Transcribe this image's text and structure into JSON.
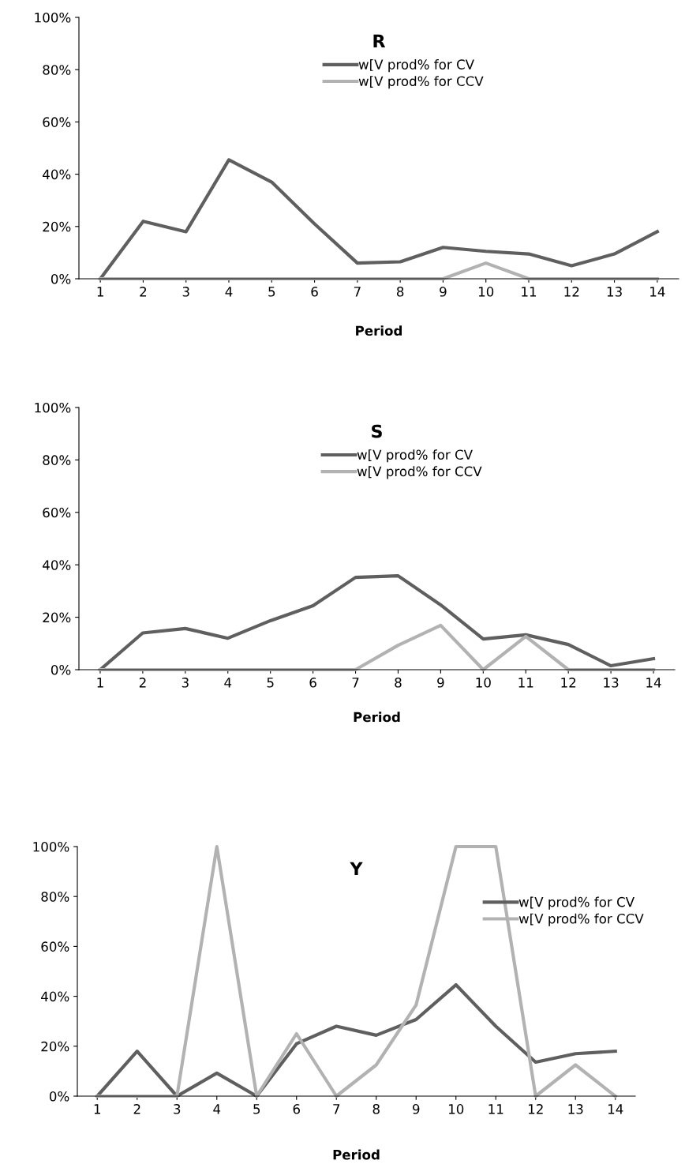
{
  "chart_data": [
    {
      "type": "line",
      "title": "R",
      "xlabel": "Period",
      "categories": [
        "1",
        "2",
        "3",
        "4",
        "5",
        "6",
        "7",
        "8",
        "9",
        "10",
        "11",
        "12",
        "13",
        "14"
      ],
      "ylim": [
        0,
        100
      ],
      "yticks": [
        {
          "value": 0,
          "label": "0%"
        },
        {
          "value": 20,
          "label": "20%"
        },
        {
          "value": 40,
          "label": "40%"
        },
        {
          "value": 60,
          "label": "60%"
        },
        {
          "value": 80,
          "label": "80%"
        },
        {
          "value": 100,
          "label": "100%"
        }
      ],
      "grid": false,
      "legend": "top",
      "marker": "none",
      "line_style": "solid",
      "series": [
        {
          "name": "w[V prod% for CV",
          "color": "#5f5f5f",
          "values": [
            0,
            22,
            18,
            45.5,
            37,
            21,
            6,
            6.5,
            12,
            10.5,
            9.5,
            5,
            9.5,
            18
          ]
        },
        {
          "name": "w[V prod% for CCV",
          "color": "#b2b2b2",
          "values": [
            0,
            0,
            0,
            0,
            0,
            0,
            0,
            0,
            0,
            6,
            0,
            0,
            0,
            0
          ]
        }
      ]
    },
    {
      "type": "line",
      "title": "S",
      "xlabel": "Period",
      "categories": [
        "1",
        "2",
        "3",
        "4",
        "5",
        "6",
        "7",
        "8",
        "9",
        "10",
        "11",
        "12",
        "13",
        "14"
      ],
      "ylim": [
        0,
        100
      ],
      "yticks": [
        {
          "value": 0,
          "label": "0%"
        },
        {
          "value": 20,
          "label": "20%"
        },
        {
          "value": 40,
          "label": "40%"
        },
        {
          "value": 60,
          "label": "60%"
        },
        {
          "value": 80,
          "label": "80%"
        },
        {
          "value": 100,
          "label": "100%"
        }
      ],
      "grid": false,
      "legend": "top",
      "marker": "none",
      "line_style": "solid",
      "series": [
        {
          "name": "w[V prod% for CV",
          "color": "#5f5f5f",
          "values": [
            0,
            14,
            15.7,
            12,
            18.7,
            24.4,
            35.2,
            35.8,
            24.7,
            11.7,
            13.3,
            9.6,
            1.5,
            4.2
          ]
        },
        {
          "name": "w[V prod% for CCV",
          "color": "#b2b2b2",
          "values": [
            0,
            0,
            0,
            0,
            0,
            0,
            0,
            9.3,
            16.9,
            0,
            12.7,
            0,
            0,
            0
          ]
        }
      ]
    },
    {
      "type": "line",
      "title": "Y",
      "xlabel": "Period",
      "categories": [
        "1",
        "2",
        "3",
        "4",
        "5",
        "6",
        "7",
        "8",
        "9",
        "10",
        "11",
        "12",
        "13",
        "14"
      ],
      "ylim": [
        0,
        100
      ],
      "yticks": [
        {
          "value": 0,
          "label": "0%"
        },
        {
          "value": 20,
          "label": "20%"
        },
        {
          "value": 40,
          "label": "40%"
        },
        {
          "value": 60,
          "label": "60%"
        },
        {
          "value": 80,
          "label": "80%"
        },
        {
          "value": 100,
          "label": "100%"
        }
      ],
      "grid": false,
      "legend": "right",
      "marker": "none",
      "line_style": "solid",
      "series": [
        {
          "name": "w[V prod% for CV",
          "color": "#5f5f5f",
          "values": [
            0,
            18,
            0,
            9.2,
            0,
            21,
            28,
            24.4,
            30.7,
            44.6,
            28,
            13.6,
            17,
            18
          ]
        },
        {
          "name": "w[V prod% for CCV",
          "color": "#b2b2b2",
          "values": [
            0,
            0,
            0,
            100,
            0,
            25,
            0,
            12.5,
            36.5,
            100,
            100,
            0,
            12.5,
            0
          ]
        }
      ]
    }
  ]
}
